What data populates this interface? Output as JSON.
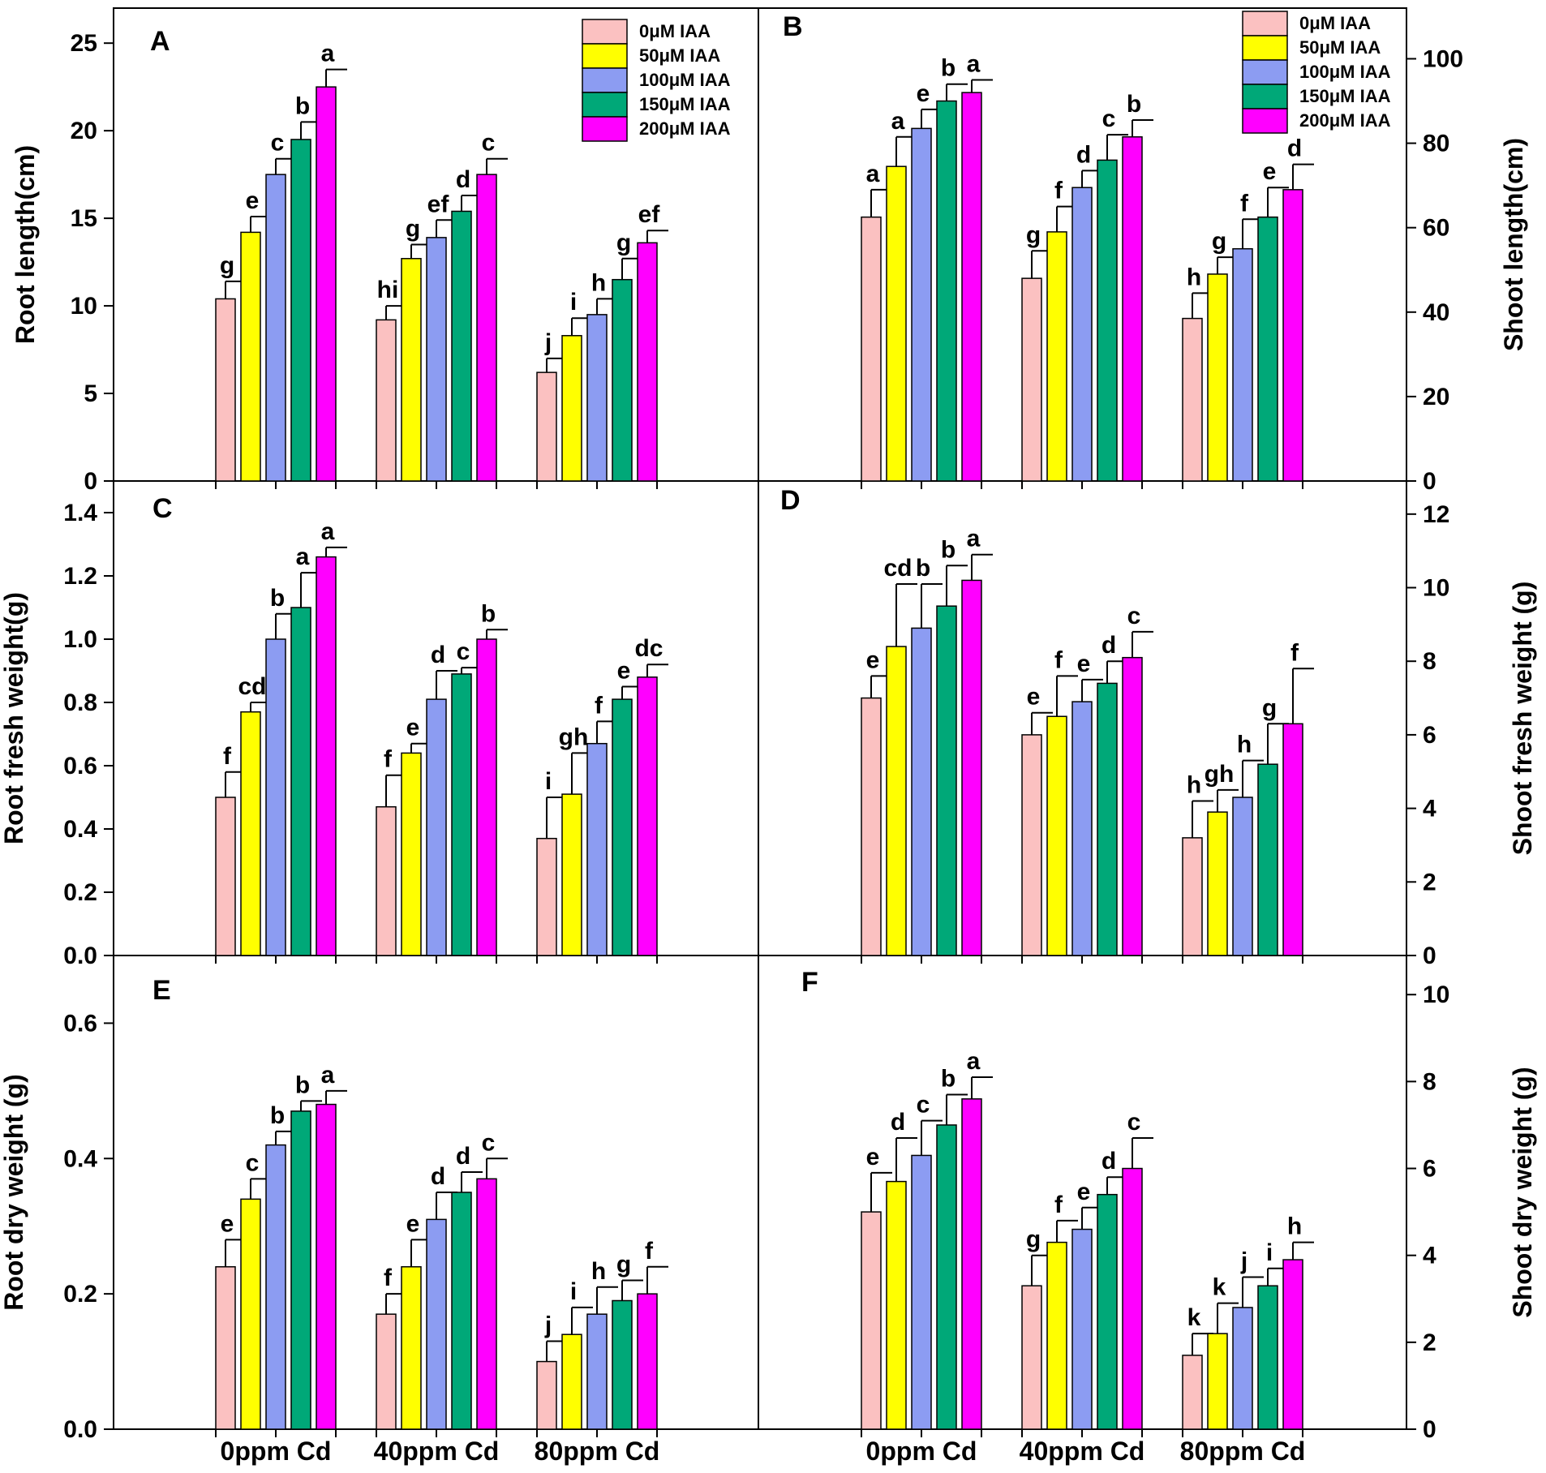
{
  "legend": {
    "entries": [
      {
        "label": "0μM IAA",
        "color": "#FBC1C1"
      },
      {
        "label": "50μM IAA",
        "color": "#FFFF00"
      },
      {
        "label": "100μM IAA",
        "color": "#8C9CF2"
      },
      {
        "label": "150μM IAA",
        "color": "#00A878"
      },
      {
        "label": "200μM IAA",
        "color": "#FF00FF"
      }
    ]
  },
  "x_categories": [
    "0ppm Cd",
    "40ppm Cd",
    "80ppm Cd"
  ],
  "chart_data": [
    {
      "type": "bar",
      "panel": "A",
      "ylabel": "Root length(cm)",
      "yaxis_side": "left",
      "ylim": [
        0,
        27
      ],
      "yticks": [
        0,
        5,
        10,
        15,
        20,
        25
      ],
      "tick_labels": [
        "0",
        "5",
        "10",
        "15",
        "20",
        "25"
      ],
      "categories": [
        "0ppm Cd",
        "40ppm Cd",
        "80ppm Cd"
      ],
      "legend": true,
      "series": [
        {
          "name": "0μM IAA",
          "values": [
            10.4,
            9.2,
            6.2
          ],
          "errors": [
            1.0,
            0.8,
            0.8
          ],
          "letters": [
            "g",
            "hi",
            "j"
          ]
        },
        {
          "name": "50μM IAA",
          "values": [
            14.2,
            12.7,
            8.3
          ],
          "errors": [
            0.9,
            0.8,
            1.0
          ],
          "letters": [
            "e",
            "g",
            "i"
          ]
        },
        {
          "name": "100μM IAA",
          "values": [
            17.5,
            13.9,
            9.5
          ],
          "errors": [
            0.9,
            1.0,
            0.9
          ],
          "letters": [
            "c",
            "ef",
            "h"
          ]
        },
        {
          "name": "150μM IAA",
          "values": [
            19.5,
            15.4,
            11.5
          ],
          "errors": [
            1.0,
            0.9,
            1.2
          ],
          "letters": [
            "b",
            "d",
            "g"
          ]
        },
        {
          "name": "200μM IAA",
          "values": [
            22.5,
            17.5,
            13.6
          ],
          "errors": [
            1.0,
            0.9,
            0.7
          ],
          "letters": [
            "a",
            "c",
            "ef"
          ]
        }
      ]
    },
    {
      "type": "bar",
      "panel": "B",
      "ylabel": "Shoot length(cm)",
      "yaxis_side": "right",
      "ylim": [
        0,
        112
      ],
      "yticks": [
        0,
        20,
        40,
        60,
        80,
        100
      ],
      "tick_labels": [
        "0",
        "20",
        "40",
        "60",
        "80",
        "100"
      ],
      "categories": [
        "0ppm Cd",
        "40ppm Cd",
        "80ppm Cd"
      ],
      "legend": true,
      "series": [
        {
          "name": "0μM IAA",
          "values": [
            62.5,
            48.0,
            38.5
          ],
          "errors": [
            6.5,
            6.5,
            6.0
          ],
          "letters": [
            "a",
            "g",
            "h"
          ]
        },
        {
          "name": "50μM IAA",
          "values": [
            74.5,
            59.0,
            49.0
          ],
          "errors": [
            7.0,
            6.0,
            4.0
          ],
          "letters": [
            "a",
            "f",
            "g"
          ]
        },
        {
          "name": "100μM IAA",
          "values": [
            83.5,
            69.5,
            55.0
          ],
          "errors": [
            4.5,
            4.0,
            7.0
          ],
          "letters": [
            "e",
            "d",
            "f"
          ]
        },
        {
          "name": "150μM IAA",
          "values": [
            90.0,
            76.0,
            62.5
          ],
          "errors": [
            4.0,
            6.0,
            7.0
          ],
          "letters": [
            "b",
            "c",
            "e"
          ]
        },
        {
          "name": "200μM IAA",
          "values": [
            92.0,
            81.5,
            69.0
          ],
          "errors": [
            3.0,
            4.0,
            6.0
          ],
          "letters": [
            "a",
            "b",
            "d"
          ]
        }
      ]
    },
    {
      "type": "bar",
      "panel": "C",
      "ylabel": "Root fresh weight(g)",
      "yaxis_side": "left",
      "ylim": [
        0,
        1.5
      ],
      "yticks": [
        0,
        0.2,
        0.4,
        0.6,
        0.8,
        1.0,
        1.2,
        1.4
      ],
      "tick_labels": [
        "0.0",
        "0.2",
        "0.4",
        "0.6",
        "0.8",
        "1.0",
        "1.2",
        "1.4"
      ],
      "categories": [
        "0ppm Cd",
        "40ppm Cd",
        "80ppm Cd"
      ],
      "legend": false,
      "series": [
        {
          "name": "0μM IAA",
          "values": [
            0.5,
            0.47,
            0.37
          ],
          "errors": [
            0.08,
            0.1,
            0.13
          ],
          "letters": [
            "f",
            "f",
            "i"
          ]
        },
        {
          "name": "50μM IAA",
          "values": [
            0.77,
            0.64,
            0.51
          ],
          "errors": [
            0.03,
            0.03,
            0.13
          ],
          "letters": [
            "cd",
            "e",
            "gh"
          ]
        },
        {
          "name": "100μM IAA",
          "values": [
            1.0,
            0.81,
            0.67
          ],
          "errors": [
            0.08,
            0.09,
            0.07
          ],
          "letters": [
            "b",
            "d",
            "f"
          ]
        },
        {
          "name": "150μM IAA",
          "values": [
            1.1,
            0.89,
            0.81
          ],
          "errors": [
            0.11,
            0.02,
            0.04
          ],
          "letters": [
            "a",
            "c",
            "e"
          ]
        },
        {
          "name": "200μM IAA",
          "values": [
            1.26,
            1.0,
            0.88
          ],
          "errors": [
            0.03,
            0.03,
            0.04
          ],
          "letters": [
            "a",
            "b",
            "dc"
          ]
        }
      ]
    },
    {
      "type": "bar",
      "panel": "D",
      "ylabel": "Shoot fresh weight (g)",
      "yaxis_side": "right",
      "ylim": [
        0,
        12.9
      ],
      "yticks": [
        0,
        2,
        4,
        6,
        8,
        10,
        12
      ],
      "tick_labels": [
        "0",
        "2",
        "4",
        "6",
        "8",
        "10",
        "12"
      ],
      "categories": [
        "0ppm Cd",
        "40ppm Cd",
        "80ppm Cd"
      ],
      "legend": false,
      "series": [
        {
          "name": "0μM IAA",
          "values": [
            7.0,
            6.0,
            3.2
          ],
          "errors": [
            0.6,
            0.6,
            1.0
          ],
          "letters": [
            "e",
            "e",
            "h"
          ]
        },
        {
          "name": "50μM IAA",
          "values": [
            8.4,
            6.5,
            3.9
          ],
          "errors": [
            1.7,
            1.1,
            0.6
          ],
          "letters": [
            "cd",
            "f",
            "gh"
          ]
        },
        {
          "name": "100μM IAA",
          "values": [
            8.9,
            6.9,
            4.3
          ],
          "errors": [
            1.2,
            0.6,
            1.0
          ],
          "letters": [
            "b",
            "e",
            "h"
          ]
        },
        {
          "name": "150μM IAA",
          "values": [
            9.5,
            7.4,
            5.2
          ],
          "errors": [
            1.1,
            0.6,
            1.1
          ],
          "letters": [
            "b",
            "d",
            "g"
          ]
        },
        {
          "name": "200μM IAA",
          "values": [
            10.2,
            8.1,
            6.3
          ],
          "errors": [
            0.7,
            0.7,
            1.5
          ],
          "letters": [
            "a",
            "c",
            "f"
          ]
        }
      ]
    },
    {
      "type": "bar",
      "panel": "E",
      "ylabel": "Root dry weight (g)",
      "yaxis_side": "left",
      "ylim": [
        0,
        0.7
      ],
      "yticks": [
        0,
        0.2,
        0.4,
        0.6
      ],
      "tick_labels": [
        "0.0",
        "0.2",
        "0.4",
        "0.6"
      ],
      "categories": [
        "0ppm Cd",
        "40ppm Cd",
        "80ppm Cd"
      ],
      "legend": false,
      "series": [
        {
          "name": "0μM IAA",
          "values": [
            0.24,
            0.17,
            0.1
          ],
          "errors": [
            0.04,
            0.03,
            0.03
          ],
          "letters": [
            "e",
            "f",
            "j"
          ]
        },
        {
          "name": "50μM IAA",
          "values": [
            0.34,
            0.24,
            0.14
          ],
          "errors": [
            0.03,
            0.04,
            0.04
          ],
          "letters": [
            "c",
            "e",
            "i"
          ]
        },
        {
          "name": "100μM IAA",
          "values": [
            0.42,
            0.31,
            0.17
          ],
          "errors": [
            0.02,
            0.04,
            0.04
          ],
          "letters": [
            "b",
            "d",
            "h"
          ]
        },
        {
          "name": "150μM IAA",
          "values": [
            0.47,
            0.35,
            0.19
          ],
          "errors": [
            0.015,
            0.03,
            0.03
          ],
          "letters": [
            "b",
            "d",
            "g"
          ]
        },
        {
          "name": "200μM IAA",
          "values": [
            0.48,
            0.37,
            0.2
          ],
          "errors": [
            0.02,
            0.03,
            0.04
          ],
          "letters": [
            "a",
            "c",
            "f"
          ]
        }
      ]
    },
    {
      "type": "bar",
      "panel": "F",
      "ylabel": "Shoot dry weight (g)",
      "yaxis_side": "right",
      "ylim": [
        0,
        10.9
      ],
      "yticks": [
        0,
        2,
        4,
        6,
        8,
        10
      ],
      "tick_labels": [
        "0",
        "2",
        "4",
        "6",
        "8",
        "10"
      ],
      "categories": [
        "0ppm Cd",
        "40ppm Cd",
        "80ppm Cd"
      ],
      "legend": false,
      "series": [
        {
          "name": "0μM IAA",
          "values": [
            5.0,
            3.3,
            1.7
          ],
          "errors": [
            0.9,
            0.7,
            0.5
          ],
          "letters": [
            "e",
            "g",
            "k"
          ]
        },
        {
          "name": "50μM IAA",
          "values": [
            5.7,
            4.3,
            2.2
          ],
          "errors": [
            1.0,
            0.5,
            0.7
          ],
          "letters": [
            "d",
            "f",
            "k"
          ]
        },
        {
          "name": "100μM IAA",
          "values": [
            6.3,
            4.6,
            2.8
          ],
          "errors": [
            0.8,
            0.5,
            0.7
          ],
          "letters": [
            "c",
            "e",
            "j"
          ]
        },
        {
          "name": "150μM IAA",
          "values": [
            7.0,
            5.4,
            3.3
          ],
          "errors": [
            0.7,
            0.4,
            0.4
          ],
          "letters": [
            "b",
            "d",
            "i"
          ]
        },
        {
          "name": "200μM IAA",
          "values": [
            7.6,
            6.0,
            3.9
          ],
          "errors": [
            0.5,
            0.7,
            0.4
          ],
          "letters": [
            "a",
            "c",
            "h"
          ]
        }
      ]
    }
  ]
}
